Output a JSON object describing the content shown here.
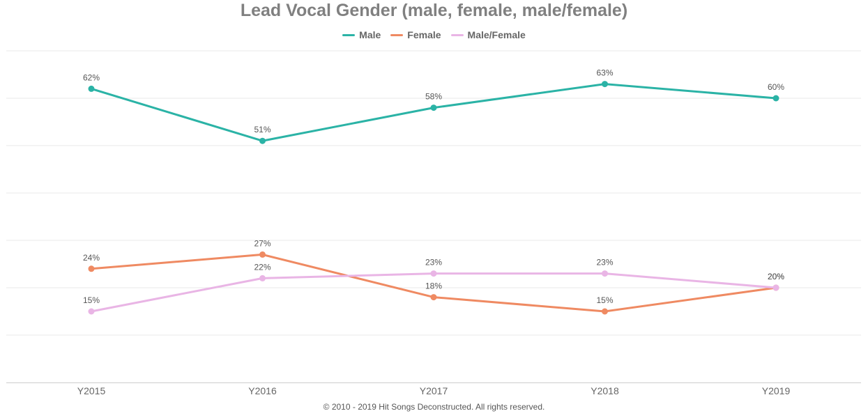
{
  "colors": {
    "male": "#2bb3a6",
    "female": "#ef8a62",
    "male_female": "#e9b5e5",
    "grid": "#e8e8e8",
    "axis": "#cccccc"
  },
  "footer": "© 2010 - 2019 Hit Songs Deconstructed. All rights reserved.",
  "chart_data": {
    "type": "line",
    "title": "Lead Vocal Gender (male, female, male/female)",
    "xlabel": "",
    "ylabel": "",
    "categories": [
      "Y2015",
      "Y2016",
      "Y2017",
      "Y2018",
      "Y2019"
    ],
    "series": [
      {
        "name": "Male",
        "color_key": "male",
        "values": [
          62,
          51,
          58,
          63,
          60
        ],
        "labels": [
          "62%",
          "51%",
          "58%",
          "63%",
          "60%"
        ]
      },
      {
        "name": "Female",
        "color_key": "female",
        "values": [
          24,
          27,
          18,
          15,
          20
        ],
        "labels": [
          "24%",
          "27%",
          "18%",
          "15%",
          "20%"
        ]
      },
      {
        "name": "Male/Female",
        "color_key": "male_female",
        "values": [
          15,
          22,
          23,
          23,
          20
        ],
        "labels": [
          "15%",
          "22%",
          "23%",
          "23%",
          "20%"
        ]
      }
    ],
    "ylim": [
      0,
      70
    ],
    "grid": true,
    "y_tick_labels_shown": false,
    "legend_position": "top-center"
  }
}
